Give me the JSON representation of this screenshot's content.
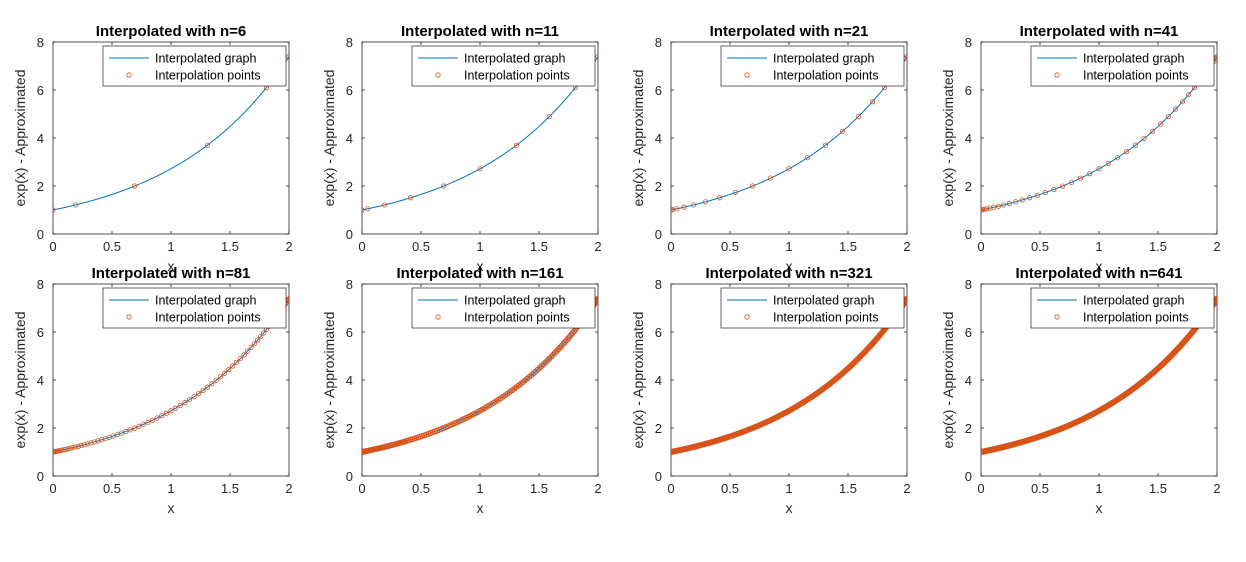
{
  "chart_data": [
    {
      "type": "line",
      "title": "Interpolated with n=6",
      "xlabel": "x",
      "ylabel": "exp(x) - Approximated",
      "n": 6,
      "xlim": [
        0,
        2
      ],
      "ylim": [
        0,
        8
      ],
      "xticks": [
        "0",
        "0.5",
        "1",
        "1.5",
        "2"
      ],
      "yticks": [
        "0",
        "2",
        "4",
        "6",
        "8"
      ],
      "legend": {
        "location": "top-right",
        "entries": [
          "Interpolated graph",
          "Interpolation points"
        ]
      },
      "series": [
        {
          "name": "Interpolated graph",
          "function": "exp(x)",
          "color": "#0072BD"
        },
        {
          "name": "Interpolation points",
          "marker": "o",
          "color": "#D95319",
          "x": [
            0,
            0.191,
            0.691,
            1.309,
            1.809,
            2
          ],
          "y": [
            1.0,
            1.21,
            2.0,
            3.7,
            6.1,
            7.39
          ]
        }
      ]
    },
    {
      "type": "line",
      "title": "Interpolated with n=11",
      "xlabel": "x",
      "ylabel": "exp(x) - Approximated",
      "n": 11,
      "xlim": [
        0,
        2
      ],
      "ylim": [
        0,
        8
      ],
      "xticks": [
        "0",
        "0.5",
        "1",
        "1.5",
        "2"
      ],
      "yticks": [
        "0",
        "2",
        "4",
        "6",
        "8"
      ],
      "legend": {
        "location": "top-right",
        "entries": [
          "Interpolated graph",
          "Interpolation points"
        ]
      },
      "series": [
        {
          "name": "Interpolated graph",
          "function": "exp(x)",
          "color": "#0072BD"
        },
        {
          "name": "Interpolation points",
          "marker": "o",
          "color": "#D95319",
          "x": [
            0,
            0.049,
            0.191,
            0.412,
            0.691,
            1.0,
            1.309,
            1.588,
            1.809,
            1.951,
            2
          ],
          "y": [
            1.0,
            1.05,
            1.21,
            1.51,
            2.0,
            2.72,
            3.7,
            4.89,
            6.1,
            7.04,
            7.39
          ]
        }
      ]
    },
    {
      "type": "line",
      "title": "Interpolated with n=21",
      "xlabel": "x",
      "ylabel": "exp(x) - Approximated",
      "n": 21,
      "xlim": [
        0,
        2
      ],
      "ylim": [
        0,
        8
      ],
      "xticks": [
        "0",
        "0.5",
        "1",
        "1.5",
        "2"
      ],
      "yticks": [
        "0",
        "2",
        "4",
        "6",
        "8"
      ],
      "legend": {
        "location": "top-right",
        "entries": [
          "Interpolated graph",
          "Interpolation points"
        ]
      },
      "series": [
        {
          "name": "Interpolated graph",
          "function": "exp(x)",
          "color": "#0072BD"
        },
        {
          "name": "Interpolation points",
          "marker": "o",
          "color": "#D95319",
          "x": [
            0,
            0.012,
            0.049,
            0.109,
            0.191,
            0.293,
            0.412,
            0.546,
            0.691,
            0.844,
            1.0,
            1.156,
            1.309,
            1.454,
            1.588,
            1.707,
            1.809,
            1.891,
            1.951,
            1.988,
            2
          ],
          "y": [
            1.0,
            1.01,
            1.05,
            1.12,
            1.21,
            1.34,
            1.51,
            1.73,
            2.0,
            2.33,
            2.72,
            3.18,
            3.7,
            4.28,
            4.89,
            5.51,
            6.1,
            6.63,
            7.04,
            7.3,
            7.39
          ]
        }
      ]
    },
    {
      "type": "line",
      "title": "Interpolated with n=41",
      "xlabel": "x",
      "ylabel": "exp(x) - Approximated",
      "n": 41,
      "xlim": [
        0,
        2
      ],
      "ylim": [
        0,
        8
      ],
      "xticks": [
        "0",
        "0.5",
        "1",
        "1.5",
        "2"
      ],
      "yticks": [
        "0",
        "2",
        "4",
        "6",
        "8"
      ],
      "legend": {
        "location": "top-right",
        "entries": [
          "Interpolated graph",
          "Interpolation points"
        ]
      },
      "series": [
        {
          "name": "Interpolated graph",
          "function": "exp(x)",
          "color": "#0072BD"
        },
        {
          "name": "Interpolation points",
          "marker": "o",
          "color": "#D95319",
          "distribution": "Chebyshev-Lobatto",
          "count": 41,
          "function": "exp(x)"
        }
      ]
    },
    {
      "type": "line",
      "title": "Interpolated with n=81",
      "xlabel": "x",
      "ylabel": "exp(x) - Approximated",
      "n": 81,
      "xlim": [
        0,
        2
      ],
      "ylim": [
        0,
        8
      ],
      "xticks": [
        "0",
        "0.5",
        "1",
        "1.5",
        "2"
      ],
      "yticks": [
        "0",
        "2",
        "4",
        "6",
        "8"
      ],
      "legend": {
        "location": "top-right",
        "entries": [
          "Interpolated graph",
          "Interpolation points"
        ]
      },
      "series": [
        {
          "name": "Interpolated graph",
          "function": "exp(x)",
          "color": "#0072BD"
        },
        {
          "name": "Interpolation points",
          "marker": "o",
          "color": "#D95319",
          "distribution": "Chebyshev-Lobatto",
          "count": 81,
          "function": "exp(x)"
        }
      ]
    },
    {
      "type": "line",
      "title": "Interpolated with n=161",
      "xlabel": "x",
      "ylabel": "exp(x) - Approximated",
      "n": 161,
      "xlim": [
        0,
        2
      ],
      "ylim": [
        0,
        8
      ],
      "xticks": [
        "0",
        "0.5",
        "1",
        "1.5",
        "2"
      ],
      "yticks": [
        "0",
        "2",
        "4",
        "6",
        "8"
      ],
      "legend": {
        "location": "top-right",
        "entries": [
          "Interpolated graph",
          "Interpolation points"
        ]
      },
      "series": [
        {
          "name": "Interpolated graph",
          "function": "exp(x)",
          "color": "#0072BD"
        },
        {
          "name": "Interpolation points",
          "marker": "o",
          "color": "#D95319",
          "distribution": "Chebyshev-Lobatto",
          "count": 161,
          "function": "exp(x)"
        }
      ]
    },
    {
      "type": "line",
      "title": "Interpolated with n=321",
      "xlabel": "x",
      "ylabel": "exp(x) - Approximated",
      "n": 321,
      "xlim": [
        0,
        2
      ],
      "ylim": [
        0,
        8
      ],
      "xticks": [
        "0",
        "0.5",
        "1",
        "1.5",
        "2"
      ],
      "yticks": [
        "0",
        "2",
        "4",
        "6",
        "8"
      ],
      "legend": {
        "location": "top-right",
        "entries": [
          "Interpolated graph",
          "Interpolation points"
        ]
      },
      "series": [
        {
          "name": "Interpolated graph",
          "function": "exp(x)",
          "color": "#0072BD"
        },
        {
          "name": "Interpolation points",
          "marker": "o",
          "color": "#D95319",
          "distribution": "Chebyshev-Lobatto",
          "count": 321,
          "function": "exp(x)"
        }
      ]
    },
    {
      "type": "line",
      "title": "Interpolated with n=641",
      "xlabel": "x",
      "ylabel": "exp(x) - Approximated",
      "n": 641,
      "xlim": [
        0,
        2
      ],
      "ylim": [
        0,
        8
      ],
      "xticks": [
        "0",
        "0.5",
        "1",
        "1.5",
        "2"
      ],
      "yticks": [
        "0",
        "2",
        "4",
        "6",
        "8"
      ],
      "legend": {
        "location": "top-right",
        "entries": [
          "Interpolated graph",
          "Interpolation points"
        ]
      },
      "series": [
        {
          "name": "Interpolated graph",
          "function": "exp(x)",
          "color": "#0072BD"
        },
        {
          "name": "Interpolation points",
          "marker": "o",
          "color": "#D95319",
          "distribution": "Chebyshev-Lobatto",
          "count": 641,
          "function": "exp(x)"
        }
      ]
    }
  ]
}
